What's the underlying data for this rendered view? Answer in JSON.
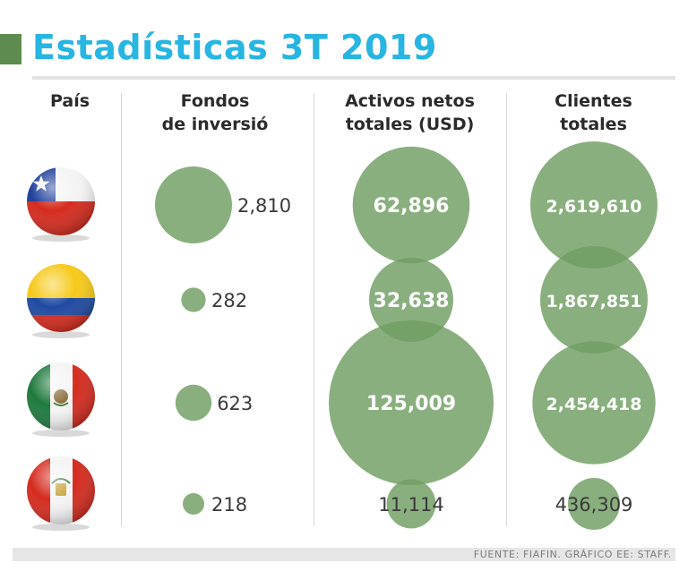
{
  "header": {
    "title": "Estadísticas 3T 2019"
  },
  "columns": {
    "country": "País",
    "funds_line1": "Fondos",
    "funds_line2": "de inversió",
    "assets_line1": "Activos netos",
    "assets_line2": "totales (USD)",
    "clients_line1": "Clientes",
    "clients_line2": "totales"
  },
  "footer": {
    "source": "FUENTE: FIAFIN. GRÁFICO EE: STAFF."
  },
  "colors": {
    "title": "#27b5e2",
    "title_bar": "#5e8b4f",
    "bubble": "#6f9e62"
  },
  "chart_data": {
    "type": "bubble-table",
    "title": "Estadísticas 3T 2019",
    "rows": [
      "Chile",
      "Colombia",
      "México",
      "Perú"
    ],
    "series": [
      {
        "name": "Fondos de inversió",
        "values": [
          2810,
          282,
          623,
          218
        ],
        "labels": [
          "2,810",
          "282",
          "623",
          "218"
        ]
      },
      {
        "name": "Activos netos totales (USD)",
        "values": [
          62896,
          32638,
          125009,
          11114
        ],
        "labels": [
          "62,896",
          "32,638",
          "125,009",
          "11,114"
        ]
      },
      {
        "name": "Clientes totales",
        "values": [
          2619610,
          1867851,
          2454418,
          436309
        ],
        "labels": [
          "2,619,610",
          "1,867,851",
          "2,454,418",
          "436,309"
        ]
      }
    ]
  }
}
